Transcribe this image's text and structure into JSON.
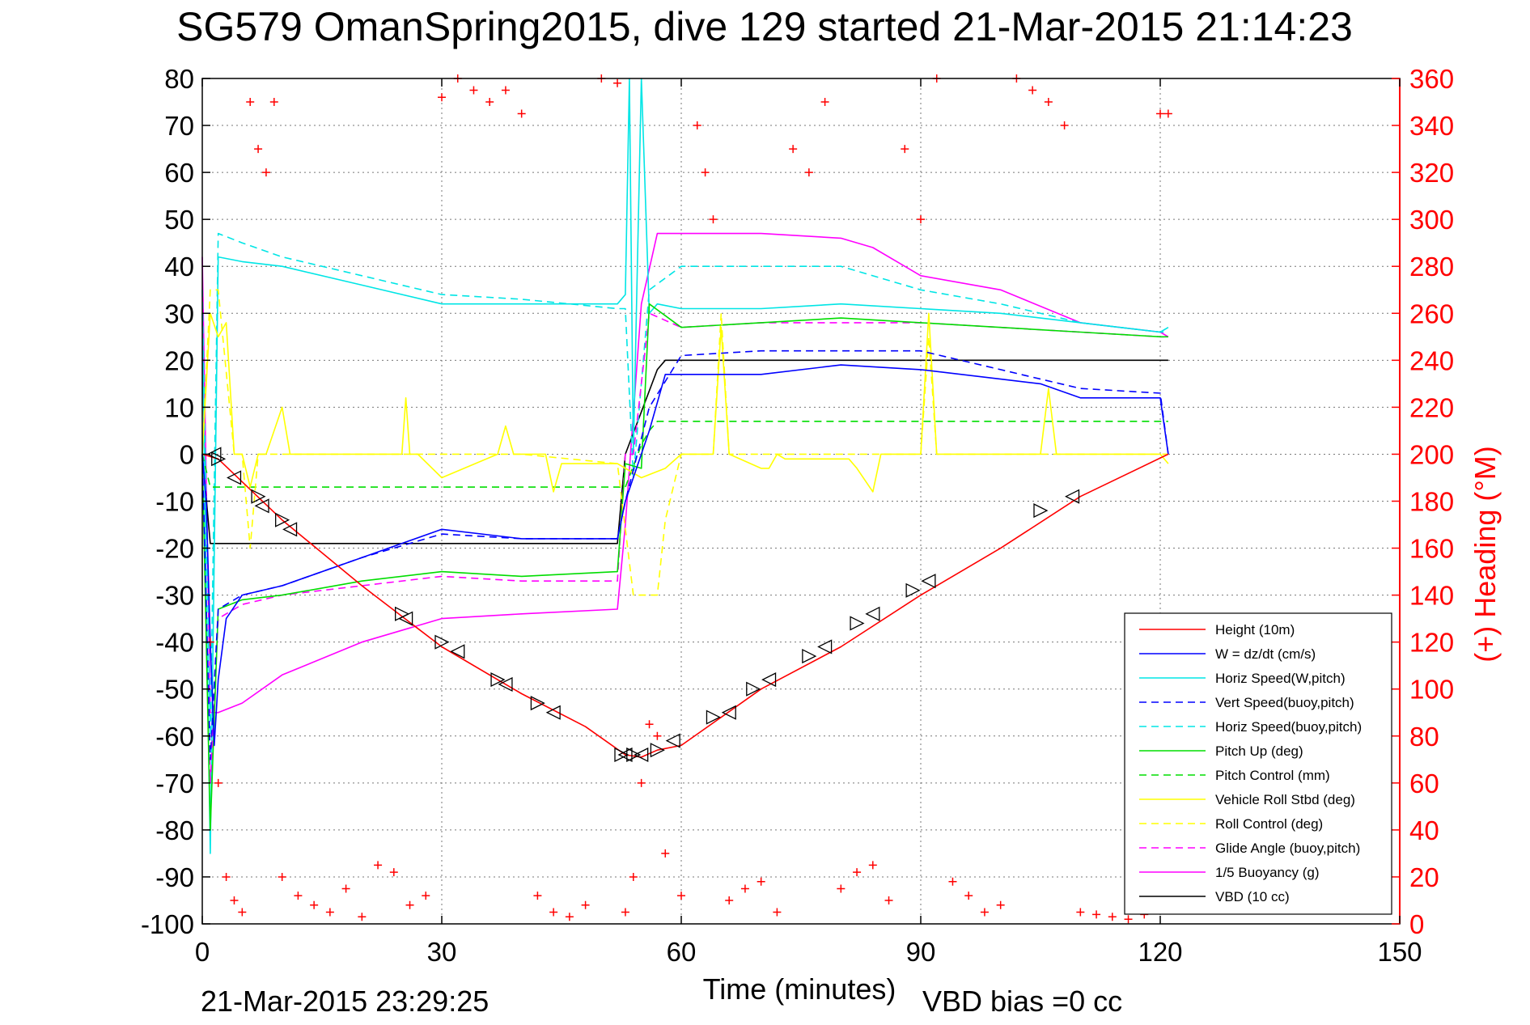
{
  "chart_data": {
    "type": "line",
    "title": "SG579 OmanSpring2015, dive 129 started 21-Mar-2015 21:14:23",
    "xlabel": "Time (minutes)",
    "ylabel_right": "(+) Heading (°M)",
    "xlim": [
      0,
      150
    ],
    "ylim": [
      -100,
      80
    ],
    "ylim_right": [
      0,
      360
    ],
    "x_ticks": [
      "0",
      "30",
      "60",
      "90",
      "120",
      "150"
    ],
    "y_ticks": [
      "80",
      "70",
      "60",
      "50",
      "40",
      "30",
      "20",
      "10",
      "0",
      "-10",
      "-20",
      "-30",
      "-40",
      "-50",
      "-60",
      "-70",
      "-80",
      "-90",
      "-100"
    ],
    "y_right_ticks": [
      "360",
      "340",
      "320",
      "300",
      "280",
      "260",
      "240",
      "220",
      "200",
      "180",
      "160",
      "140",
      "120",
      "100",
      "80",
      "60",
      "40",
      "20",
      "0"
    ],
    "grid": true,
    "legend_position": "bottom-right",
    "footer_left": "21-Mar-2015 23:29:25",
    "footer_right": "VBD bias =0 cc",
    "series": [
      {
        "name": "Height (10m)",
        "color": "#ff0000",
        "style": "solid",
        "x": [
          0,
          2,
          10,
          20,
          30,
          40,
          48,
          53,
          55,
          57,
          60,
          70,
          80,
          90,
          100,
          110,
          121
        ],
        "y": [
          0,
          -1,
          -14,
          -28,
          -41,
          -51,
          -58,
          -64,
          -64.5,
          -63,
          -62,
          -50,
          -41,
          -30,
          -20,
          -9,
          0
        ]
      },
      {
        "name": "W = dz/dt (cm/s)",
        "color": "#0000ff",
        "style": "solid",
        "x": [
          0,
          0.5,
          1,
          1.5,
          2,
          3,
          5,
          10,
          20,
          30,
          40,
          52,
          53,
          56,
          58,
          60,
          70,
          80,
          90,
          100,
          105,
          110,
          120,
          121
        ],
        "y": [
          0,
          -10,
          -40,
          -62,
          -48,
          -35,
          -30,
          -28,
          -22,
          -16,
          -18,
          -18,
          -10,
          5,
          17,
          17,
          17,
          19,
          18,
          16,
          15,
          12,
          12,
          0
        ]
      },
      {
        "name": "Horiz Speed(W,pitch)",
        "color": "#00e5e5",
        "style": "solid",
        "x": [
          0,
          0.5,
          1,
          2,
          5,
          10,
          20,
          30,
          40,
          52,
          53,
          53.5,
          54,
          55,
          56,
          57,
          60,
          70,
          80,
          90,
          100,
          110,
          120,
          121
        ],
        "y": [
          30,
          -30,
          -85,
          42,
          41,
          40,
          36,
          32,
          32,
          32,
          34,
          80,
          0,
          80,
          30,
          32,
          31,
          31,
          32,
          31,
          30,
          28,
          26,
          27
        ]
      },
      {
        "name": "Vert Speed(buoy,pitch)",
        "color": "#0000ff",
        "style": "dashed",
        "x": [
          0,
          1,
          2,
          5,
          10,
          20,
          30,
          40,
          52,
          53,
          56,
          60,
          70,
          80,
          90,
          100,
          110,
          120,
          121
        ],
        "y": [
          0,
          -65,
          -33,
          -30,
          -28,
          -22,
          -17,
          -18,
          -18,
          -10,
          10,
          21,
          22,
          22,
          22,
          18,
          14,
          13,
          0
        ]
      },
      {
        "name": "Horiz Speed(buoy,pitch)",
        "color": "#00e5e5",
        "style": "dashed",
        "x": [
          0,
          1,
          2,
          5,
          10,
          20,
          30,
          40,
          52,
          53,
          54,
          56,
          60,
          70,
          80,
          90,
          100,
          110,
          120,
          121
        ],
        "y": [
          35,
          -60,
          47,
          45,
          42,
          38,
          34,
          33,
          31,
          31,
          -5,
          35,
          40,
          40,
          40,
          35,
          32,
          28,
          26,
          26
        ]
      },
      {
        "name": "Pitch Up (deg)",
        "color": "#00dd00",
        "style": "solid",
        "x": [
          0,
          1,
          2,
          5,
          10,
          20,
          30,
          40,
          52,
          53,
          55,
          56,
          60,
          70,
          80,
          90,
          100,
          110,
          120,
          121
        ],
        "y": [
          0,
          -80,
          -33,
          -31,
          -30,
          -27,
          -25,
          -26,
          -25,
          -2,
          -3,
          32,
          27,
          28,
          29,
          28,
          27,
          26,
          25,
          25
        ]
      },
      {
        "name": "Pitch Control (mm)",
        "color": "#00dd00",
        "style": "dashed",
        "x": [
          0,
          1,
          2,
          52,
          53,
          55,
          56,
          57,
          121
        ],
        "y": [
          0,
          -7,
          -7,
          -7,
          -7,
          2,
          5,
          7,
          7
        ]
      },
      {
        "name": "Vehicle Roll Stbd (deg)",
        "color": "#ffff00",
        "style": "solid",
        "x": [
          0,
          1,
          2,
          3,
          4,
          5,
          6,
          7,
          8,
          10,
          11,
          12,
          25,
          25.5,
          26,
          27,
          30,
          37,
          38,
          39,
          43,
          44,
          45,
          52,
          55,
          58,
          60,
          64,
          65,
          66,
          70,
          71,
          72,
          73,
          81,
          82,
          84,
          85,
          90,
          91,
          92,
          105,
          106,
          107,
          108,
          120,
          121
        ],
        "y": [
          0,
          30,
          25,
          28,
          0,
          0,
          -7,
          0,
          0,
          10,
          0,
          0,
          0,
          12,
          0,
          0,
          -5,
          0,
          6,
          0,
          0,
          -8,
          -2,
          -2,
          -5,
          -3,
          0,
          0,
          27,
          0,
          -3,
          -3,
          0,
          -1,
          -1,
          -3,
          -8,
          0,
          0,
          30,
          0,
          0,
          14,
          0,
          0,
          0,
          -2
        ]
      },
      {
        "name": "Roll Control (deg)",
        "color": "#ffff00",
        "style": "dashed",
        "x": [
          0,
          1,
          2,
          4,
          5,
          6,
          7,
          8,
          30,
          35,
          40,
          52,
          54,
          55,
          57,
          58,
          60,
          64,
          65,
          66,
          85,
          86,
          90,
          91,
          92,
          121
        ],
        "y": [
          0,
          35,
          35,
          0,
          0,
          -20,
          0,
          0,
          0,
          0,
          0,
          -2,
          -30,
          -30,
          -30,
          -14,
          0,
          0,
          30,
          0,
          0,
          0,
          0,
          25,
          0,
          0
        ]
      },
      {
        "name": "Glide Angle (buoy,pitch)",
        "color": "#ff00ff",
        "style": "dashed",
        "x": [
          0,
          1,
          2,
          5,
          10,
          20,
          30,
          40,
          52,
          53,
          54,
          56,
          60,
          70,
          80,
          90,
          100,
          110,
          120,
          121
        ],
        "y": [
          0,
          -70,
          -35,
          -32,
          -30,
          -28,
          -26,
          -27,
          -27,
          0,
          0,
          30,
          27,
          28,
          28,
          28,
          27,
          26,
          25,
          25
        ]
      },
      {
        "name": "1/5 Buoyancy (g)",
        "color": "#ff00ff",
        "style": "solid",
        "x": [
          0,
          1,
          2,
          5,
          10,
          20,
          30,
          40,
          52,
          53,
          55,
          57,
          60,
          70,
          80,
          84,
          88,
          90,
          100,
          110,
          120,
          121
        ],
        "y": [
          42,
          -55,
          -55,
          -53,
          -47,
          -40,
          -35,
          -34,
          -33,
          -15,
          32,
          47,
          47,
          47,
          46,
          44,
          40,
          38,
          35,
          28,
          26,
          25
        ]
      },
      {
        "name": "VBD (10 cc)",
        "color": "#000000",
        "style": "solid",
        "x": [
          0,
          1,
          2,
          52,
          53,
          57,
          58,
          60,
          70,
          80,
          90,
          100,
          110,
          120,
          121
        ],
        "y": [
          0,
          -19,
          -19,
          -19,
          0,
          18,
          20,
          20,
          20,
          20,
          20,
          20,
          20,
          20,
          20
        ]
      }
    ],
    "heading_points": {
      "name": "(+) Heading (°M)",
      "color": "#ff0000",
      "marker": "+",
      "x": [
        1,
        2,
        3,
        4,
        5,
        6,
        7,
        8,
        9,
        10,
        12,
        14,
        16,
        18,
        20,
        22,
        24,
        26,
        28,
        30,
        32,
        34,
        36,
        38,
        40,
        42,
        44,
        46,
        48,
        50,
        52,
        53,
        54,
        55,
        56,
        57,
        58,
        60,
        62,
        63,
        64,
        66,
        68,
        70,
        72,
        74,
        76,
        78,
        80,
        82,
        84,
        86,
        88,
        90,
        92,
        94,
        96,
        98,
        100,
        102,
        104,
        106,
        108,
        110,
        112,
        114,
        116,
        118,
        120,
        121
      ],
      "y": [
        120,
        60,
        20,
        10,
        5,
        350,
        330,
        320,
        350,
        20,
        12,
        8,
        5,
        15,
        3,
        25,
        22,
        8,
        12,
        352,
        360,
        355,
        350,
        355,
        345,
        12,
        5,
        3,
        8,
        360,
        358,
        5,
        20,
        60,
        85,
        80,
        30,
        12,
        340,
        320,
        300,
        10,
        15,
        18,
        5,
        330,
        320,
        350,
        15,
        22,
        25,
        10,
        330,
        300,
        360,
        18,
        12,
        5,
        8,
        360,
        355,
        350,
        340,
        5,
        4,
        3,
        2,
        4,
        345,
        345
      ]
    },
    "triangle_markers": {
      "color": "#000000",
      "x": [
        1.5,
        2,
        4,
        7,
        7.5,
        10,
        11,
        25,
        25.5,
        30,
        32,
        37,
        38,
        42,
        44,
        52.5,
        53,
        54,
        55,
        57,
        59,
        64,
        66,
        69,
        71,
        76,
        78,
        82,
        84,
        89,
        91,
        105,
        109
      ],
      "y": [
        0,
        -1,
        -5,
        -9,
        -11,
        -14,
        -16,
        -34,
        -35,
        -40,
        -42,
        -48,
        -49,
        -53,
        -55,
        -64,
        -64,
        -64,
        -64,
        -63,
        -61,
        -56,
        -55,
        -50,
        -48,
        -43,
        -41,
        -36,
        -34,
        -29,
        -27,
        -12,
        -9
      ]
    }
  }
}
